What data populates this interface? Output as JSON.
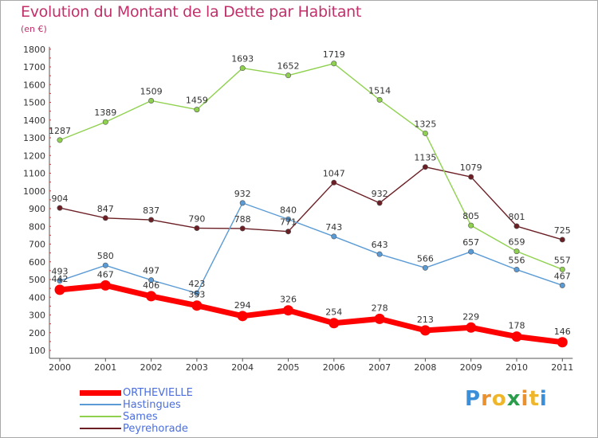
{
  "title": "Evolution du Montant de la Dette par Habitant",
  "subtitle": "(en €)",
  "logo": {
    "text": "Proxiti",
    "letters": [
      "P",
      "r",
      "o",
      "x",
      "i",
      "t",
      "i"
    ],
    "colors": [
      "#3a8fd8",
      "#e8912e",
      "#f0b62a",
      "#2a9d4b",
      "#e8912e",
      "#f0b62a",
      "#3a8fd8"
    ]
  },
  "chart_data": {
    "type": "line",
    "title": "Evolution du Montant de la Dette par Habitant",
    "subtitle": "(en €)",
    "x": [
      "2000",
      "2001",
      "2002",
      "2003",
      "2004",
      "2005",
      "2006",
      "2007",
      "2008",
      "2009",
      "2010",
      "2011"
    ],
    "yticks": [
      100,
      200,
      300,
      400,
      500,
      600,
      700,
      800,
      900,
      1000,
      1100,
      1200,
      1300,
      1400,
      1500,
      1600,
      1700,
      1800
    ],
    "ylim": [
      100,
      1800
    ],
    "grid": false,
    "legend_position": "bottom-left",
    "series": [
      {
        "name": "ORTHEVIELLE",
        "color": "#ff0000",
        "values": [
          442,
          467,
          406,
          353,
          294,
          326,
          254,
          278,
          213,
          229,
          178,
          146
        ]
      },
      {
        "name": "Hastingues",
        "color": "#5b9bd5",
        "values": [
          493,
          580,
          497,
          423,
          932,
          840,
          743,
          643,
          566,
          657,
          556,
          467
        ]
      },
      {
        "name": "Sames",
        "color": "#8fd14f",
        "values": [
          1287,
          1389,
          1509,
          1459,
          1693,
          1652,
          1719,
          1514,
          1325,
          805,
          659,
          557
        ]
      },
      {
        "name": "Peyrehorade",
        "color": "#6b1f25",
        "values": [
          904,
          847,
          837,
          790,
          788,
          771,
          1047,
          932,
          1135,
          1079,
          801,
          725
        ]
      }
    ]
  }
}
